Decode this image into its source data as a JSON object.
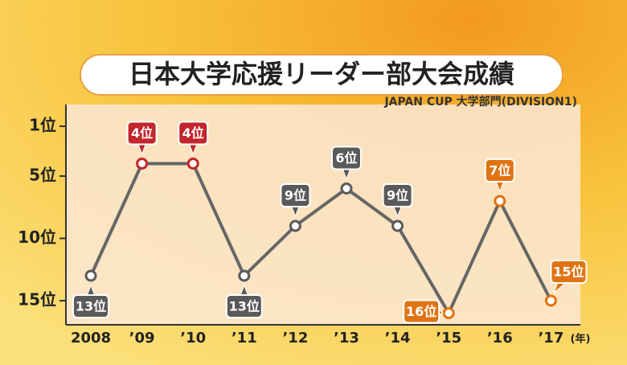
{
  "chart_data": {
    "type": "line",
    "title": "日本大学応援リーダー部大会成績",
    "subtitle": "JAPAN CUP 大学部門(DIVISION1)",
    "x_unit": "(年)",
    "categories": [
      "2008",
      "’09",
      "’10",
      "’11",
      "’12",
      "’13",
      "’14",
      "’15",
      "’16",
      "’17"
    ],
    "values": [
      13,
      4,
      4,
      13,
      9,
      6,
      9,
      16,
      7,
      15
    ],
    "value_labels": [
      "13位",
      "4位",
      "4位",
      "13位",
      "9位",
      "6位",
      "9位",
      "16位",
      "7位",
      "15位"
    ],
    "point_colors": [
      "#5a5a5a",
      "#c3262c",
      "#c3262c",
      "#5a5a5a",
      "#5a5a5a",
      "#5a5a5a",
      "#5a5a5a",
      "#e07412",
      "#e07412",
      "#e07412"
    ],
    "color": "#666666",
    "ylim": [
      0,
      17
    ],
    "invert_y": true,
    "yticks": [
      {
        "value": 1,
        "label": "1位"
      },
      {
        "value": 5,
        "label": "5位"
      },
      {
        "value": 10,
        "label": "10位"
      },
      {
        "value": 15,
        "label": "15位"
      }
    ]
  }
}
